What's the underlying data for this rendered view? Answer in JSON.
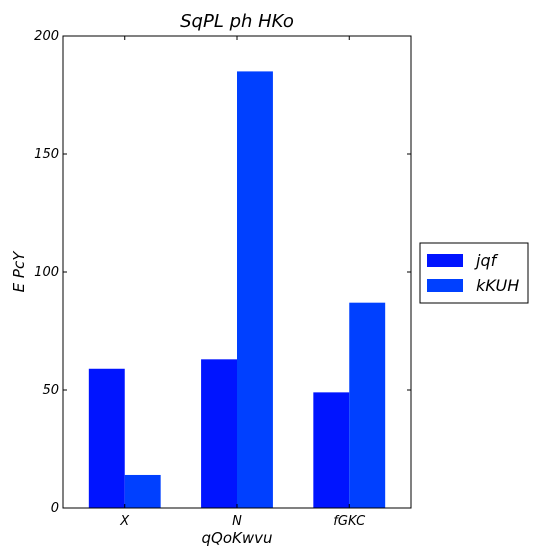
{
  "chart_data": {
    "type": "bar",
    "title": "SqPL ph HKo",
    "xlabel": "qQoKwvu",
    "ylabel": "E PcY",
    "categories": [
      "X",
      "N",
      "fGKC"
    ],
    "series": [
      {
        "name": "jqf",
        "values": [
          59,
          63,
          49
        ],
        "color": "#0014ff"
      },
      {
        "name": "kKUH",
        "values": [
          14,
          185,
          87
        ],
        "color": "#0040ff"
      }
    ],
    "ylim": [
      0,
      200
    ],
    "yticks": [
      0,
      50,
      100,
      150,
      200
    ],
    "grid": false,
    "legend": "right"
  }
}
